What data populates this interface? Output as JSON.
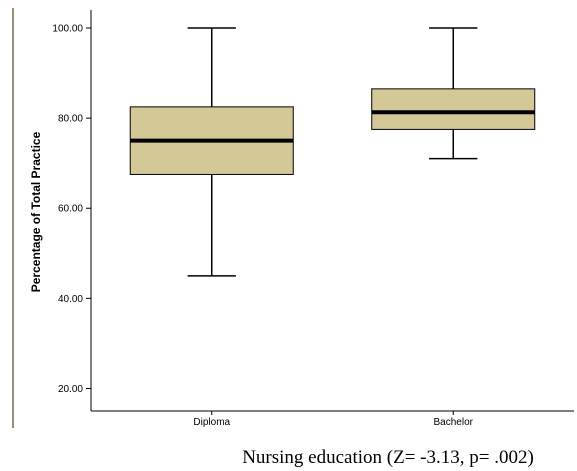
{
  "chart_data": {
    "type": "box",
    "title": "",
    "xlabel": "Nursing education (Z= -3.13, p= .002)",
    "ylabel": "Percentage of Total Practice",
    "ylim": [
      15,
      104
    ],
    "yticks": [
      20,
      40,
      60,
      80,
      100
    ],
    "ytick_labels": [
      "20.00",
      "40.00",
      "60.00",
      "80.00",
      "100.00"
    ],
    "categories": [
      "Diploma",
      "Bachelor"
    ],
    "boxes": [
      {
        "category": "Diploma",
        "min": 45,
        "q1": 67.5,
        "median": 75,
        "q3": 82.5,
        "max": 100
      },
      {
        "category": "Bachelor",
        "min": 71,
        "q1": 77.5,
        "median": 81.3,
        "q3": 86.5,
        "max": 100
      }
    ],
    "grid": false,
    "legend": "none"
  },
  "colors": {
    "box_fill": "#d4c896",
    "box_stroke": "#000000",
    "axis": "#000000",
    "left_rule": "#a08a70"
  }
}
